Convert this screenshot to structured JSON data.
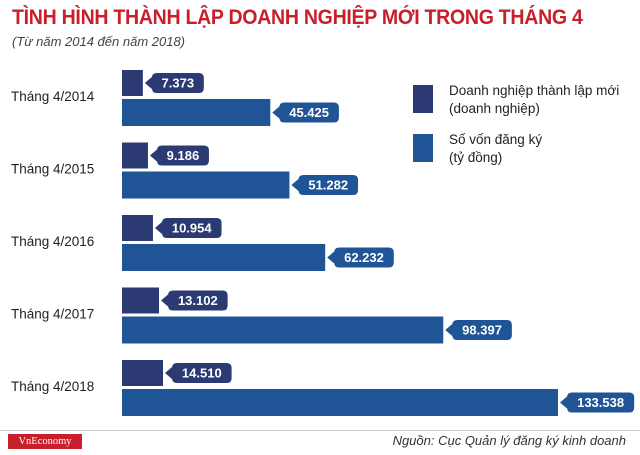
{
  "header": {
    "title": "TÌNH HÌNH THÀNH LẬP DOANH NGHIỆP MỚI TRONG THÁNG 4",
    "subtitle": "(Từ năm 2014 đến năm 2018)"
  },
  "legend": [
    {
      "label_line1": "Doanh nghiệp thành lập mới",
      "label_line2": "(doanh nghiệp)",
      "color": "#2b3a72"
    },
    {
      "label_line1": "Số vốn đăng ký",
      "label_line2": "(tỷ đồng)",
      "color": "#1f5597"
    }
  ],
  "footer": {
    "brand": "VnEconomy",
    "source": "Nguồn: Cục Quản lý đăng ký kinh doanh"
  },
  "colors": {
    "title": "#c8202a",
    "enterprises": "#2b3a72",
    "capital": "#1f5597"
  },
  "chart_data": {
    "type": "bar",
    "orientation": "horizontal",
    "categories": [
      "Tháng 4/2014",
      "Tháng 4/2015",
      "Tháng 4/2016",
      "Tháng 4/2017",
      "Tháng 4/2018"
    ],
    "series": [
      {
        "name": "Doanh nghiệp thành lập mới (doanh nghiệp)",
        "values": [
          7373,
          9186,
          10954,
          13102,
          14510
        ],
        "labels": [
          "7.373",
          "9.186",
          "10.954",
          "13.102",
          "14.510"
        ]
      },
      {
        "name": "Số vốn đăng ký (tỷ đồng)",
        "values": [
          45425,
          51282,
          62232,
          98397,
          133538
        ],
        "labels": [
          "45.425",
          "51.282",
          "62.232",
          "98.397",
          "133.538"
        ]
      }
    ],
    "grid": false,
    "legend_position": "top-right"
  }
}
